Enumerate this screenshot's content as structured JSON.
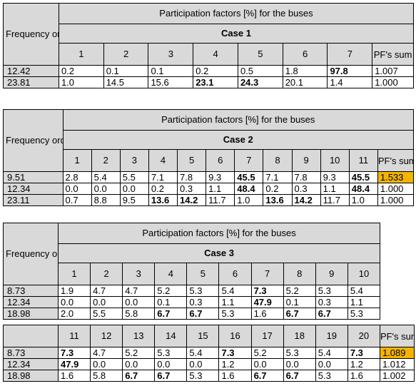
{
  "header_title": "Participation factors [%] for the buses",
  "freq_header": "Frequency order [-]",
  "pf_sum_header": "PF's sum",
  "case1": {
    "label": "Case 1",
    "buses": [
      "1",
      "2",
      "3",
      "4",
      "5",
      "6",
      "7"
    ],
    "rows": [
      {
        "freq": "12.42",
        "values": [
          "0.2",
          "0.1",
          "0.1",
          "0.2",
          "0.5",
          "1.8",
          "97.8"
        ],
        "bold": [
          6
        ],
        "sum": "1.007",
        "sum_highlight": false
      },
      {
        "freq": "23.81",
        "values": [
          "1.0",
          "14.5",
          "15.6",
          "23.1",
          "24.3",
          "20.1",
          "1.4"
        ],
        "bold": [
          3,
          4
        ],
        "sum": "1.000",
        "sum_highlight": false
      }
    ]
  },
  "case2": {
    "label": "Case 2",
    "buses": [
      "1",
      "2",
      "3",
      "4",
      "5",
      "6",
      "7",
      "8",
      "9",
      "10",
      "11"
    ],
    "rows": [
      {
        "freq": "9.51",
        "values": [
          "2.8",
          "5.4",
          "5.5",
          "7.1",
          "7.8",
          "9.3",
          "45.5",
          "7.1",
          "7.8",
          "9.3",
          "45.5"
        ],
        "bold": [
          6,
          10
        ],
        "sum": "1.533",
        "sum_highlight": true
      },
      {
        "freq": "12.34",
        "values": [
          "0.0",
          "0.0",
          "0.0",
          "0.2",
          "0.3",
          "1.1",
          "48.4",
          "0.2",
          "0.3",
          "1.1",
          "48.4"
        ],
        "bold": [
          6,
          10
        ],
        "sum": "1.000",
        "sum_highlight": false
      },
      {
        "freq": "23.11",
        "values": [
          "0.7",
          "8.8",
          "9.5",
          "13.6",
          "14.2",
          "11.7",
          "1.0",
          "13.6",
          "14.2",
          "11.7",
          "1.0"
        ],
        "bold": [
          3,
          4,
          7,
          8
        ],
        "sum": "1.000",
        "sum_highlight": false
      }
    ]
  },
  "case3": {
    "label": "Case 3",
    "buses_a": [
      "1",
      "2",
      "3",
      "4",
      "5",
      "6",
      "7",
      "8",
      "9",
      "10"
    ],
    "rows_a": [
      {
        "freq": "8.73",
        "values": [
          "1.9",
          "4.7",
          "4.7",
          "5.2",
          "5.3",
          "5.4",
          "7.3",
          "5.2",
          "5.3",
          "5.4"
        ],
        "bold": [
          6
        ]
      },
      {
        "freq": "12.34",
        "values": [
          "0.0",
          "0.0",
          "0.0",
          "0.1",
          "0.3",
          "1.1",
          "47.9",
          "0.1",
          "0.3",
          "1.1"
        ],
        "bold": [
          6
        ]
      },
      {
        "freq": "18.98",
        "values": [
          "2.0",
          "5.5",
          "5.8",
          "6.7",
          "6.7",
          "5.3",
          "1.6",
          "6.7",
          "6.7",
          "5.3"
        ],
        "bold": [
          3,
          4,
          7,
          8
        ]
      }
    ],
    "buses_b": [
      "11",
      "12",
      "13",
      "14",
      "15",
      "16",
      "17",
      "18",
      "19",
      "20"
    ],
    "rows_b": [
      {
        "freq": "8.73",
        "values": [
          "7.3",
          "4.7",
          "5.2",
          "5.3",
          "5.4",
          "7.3",
          "5.2",
          "5.3",
          "5.4",
          "7.3"
        ],
        "bold": [
          0,
          5,
          9
        ],
        "sum": "1.089",
        "sum_highlight": true
      },
      {
        "freq": "12.34",
        "values": [
          "47.9",
          "0.0",
          "0.0",
          "0.0",
          "0.0",
          "1.2",
          "0.0",
          "0.0",
          "0.0",
          "1.2"
        ],
        "bold": [
          0
        ],
        "sum": "1.012",
        "sum_highlight": false
      },
      {
        "freq": "18.98",
        "values": [
          "1.6",
          "5.8",
          "6.7",
          "6.7",
          "5.3",
          "1.6",
          "6.7",
          "6.7",
          "5.3",
          "1.6"
        ],
        "bold": [
          2,
          3,
          6,
          7
        ],
        "sum": "1.002",
        "sum_highlight": false
      }
    ]
  },
  "colors": {
    "header_bg": "#d9d9d9",
    "highlight": "#f4b400"
  }
}
